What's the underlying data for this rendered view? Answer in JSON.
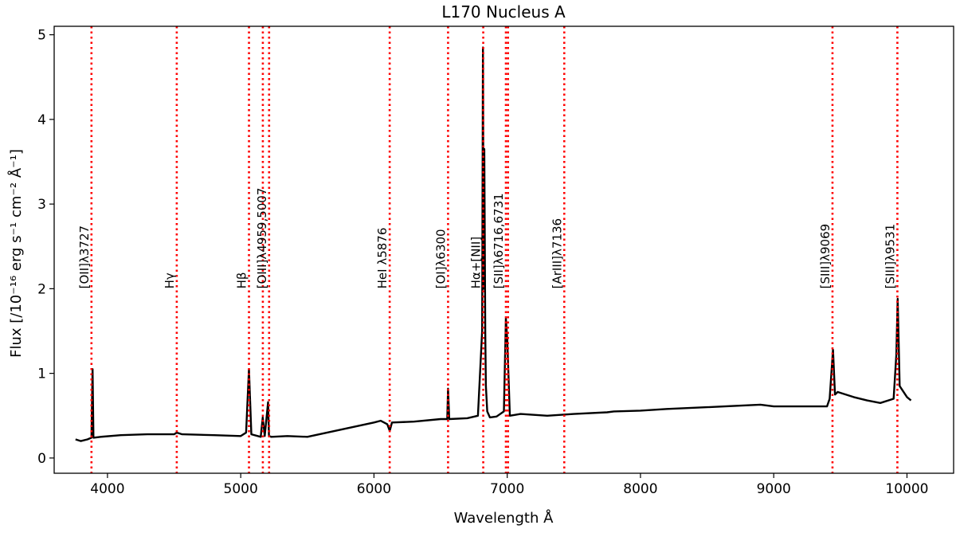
{
  "chart_data": {
    "type": "line",
    "title": "L170 Nucleus A",
    "xlabel": "Wavelength Å",
    "ylabel": "Flux  [/10⁻¹⁶ erg s⁻¹ cm⁻² Å⁻¹]",
    "xlim": [
      3600,
      10350
    ],
    "ylim": [
      -0.18,
      5.1
    ],
    "x_ticks": [
      4000,
      5000,
      6000,
      7000,
      8000,
      9000,
      10000
    ],
    "y_ticks": [
      0,
      1,
      2,
      3,
      4,
      5
    ],
    "grid": false,
    "series": [
      {
        "line_color": "#000000",
        "x": [
          3760,
          3800,
          3850,
          3880,
          3888,
          3895,
          3950,
          4100,
          4300,
          4500,
          4520,
          4560,
          4800,
          5000,
          5040,
          5062,
          5080,
          5150,
          5165,
          5180,
          5205,
          5212,
          5230,
          5350,
          5500,
          6000,
          6050,
          6100,
          6118,
          6135,
          6300,
          6500,
          6550,
          6556,
          6565,
          6700,
          6780,
          6812,
          6818,
          6823,
          6828,
          6835,
          6840,
          6850,
          6870,
          6920,
          6975,
          6990,
          7000,
          7020,
          7100,
          7300,
          7500,
          7750,
          7800,
          8000,
          8200,
          8500,
          8900,
          9000,
          9400,
          9420,
          9445,
          9460,
          9480,
          9600,
          9700,
          9800,
          9900,
          9920,
          9930,
          9945,
          10000,
          10030
        ],
        "y": [
          0.22,
          0.2,
          0.22,
          0.24,
          1.05,
          0.24,
          0.25,
          0.27,
          0.28,
          0.28,
          0.3,
          0.28,
          0.27,
          0.26,
          0.3,
          1.05,
          0.28,
          0.25,
          0.48,
          0.26,
          0.66,
          0.26,
          0.25,
          0.26,
          0.25,
          0.42,
          0.44,
          0.4,
          0.32,
          0.42,
          0.43,
          0.46,
          0.46,
          0.82,
          0.46,
          0.47,
          0.5,
          1.5,
          4.85,
          2.0,
          3.65,
          1.5,
          0.85,
          0.55,
          0.48,
          0.49,
          0.55,
          1.65,
          1.4,
          0.5,
          0.52,
          0.5,
          0.52,
          0.54,
          0.55,
          0.56,
          0.58,
          0.6,
          0.63,
          0.61,
          0.61,
          0.7,
          1.28,
          0.75,
          0.78,
          0.72,
          0.68,
          0.65,
          0.7,
          1.22,
          1.88,
          0.85,
          0.72,
          0.68
        ]
      }
    ],
    "vlines": {
      "color": "#ff0000",
      "style": "dotted",
      "x": [
        3880,
        4520,
        5062,
        5166,
        5213,
        6118,
        6556,
        6820,
        6990,
        7006,
        7428,
        9441,
        9928
      ]
    },
    "annotations": [
      {
        "text": "[OII]λ3727",
        "x": 3880
      },
      {
        "text": "Hγ",
        "x": 4520
      },
      {
        "text": "Hβ",
        "x": 5062
      },
      {
        "text": "[OIII]λ4959,5007",
        "x": 5213
      },
      {
        "text": "HeI λ5876",
        "x": 6118
      },
      {
        "text": "[OI]λ6300",
        "x": 6556
      },
      {
        "text": "Hα+[NII]",
        "x": 6820
      },
      {
        "text": "[SII]λ6716,6731",
        "x": 6990
      },
      {
        "text": "[ArIII]λ7136",
        "x": 7428
      },
      {
        "text": "[SIII]λ9069",
        "x": 9441
      },
      {
        "text": "[SIII]λ9531",
        "x": 9928
      }
    ]
  }
}
